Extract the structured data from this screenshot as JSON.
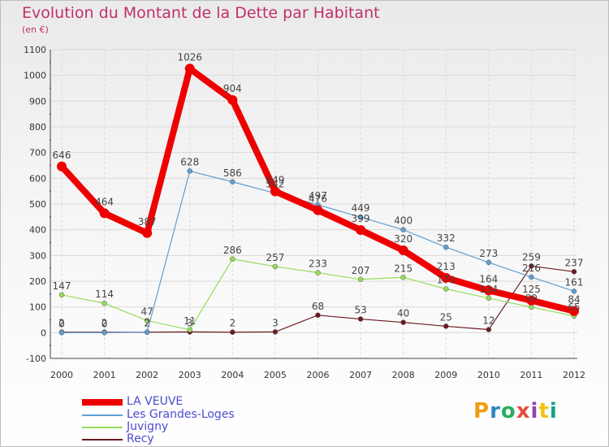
{
  "header": {
    "title": "Evolution du Montant de la Dette par Habitant",
    "subtitle": "(en €)"
  },
  "logo": {
    "text": "Proxiti"
  },
  "colors": {
    "accent": "#c0306a",
    "legend_text": "#4b4bcf",
    "grid": "#d9d9d9"
  },
  "chart_data": {
    "type": "line",
    "title": "Evolution du Montant de la Dette par Habitant",
    "subtitle": "(en €)",
    "xlabel": "",
    "ylabel": "",
    "x": [
      "2000",
      "2001",
      "2002",
      "2003",
      "2004",
      "2005",
      "2006",
      "2007",
      "2008",
      "2009",
      "2010",
      "2011",
      "2012"
    ],
    "ylim": [
      -100,
      1100
    ],
    "yticks": [
      -100,
      0,
      100,
      200,
      300,
      400,
      500,
      600,
      700,
      800,
      900,
      1000,
      1100
    ],
    "grid": true,
    "legend_position": "bottom-left",
    "series": [
      {
        "name": "LA VEUVE",
        "color": "#ee0000",
        "values": [
          646,
          464,
          387,
          1026,
          904,
          549,
          476,
          399,
          320,
          213,
          164,
          125,
          84
        ]
      },
      {
        "name": "Les Grandes-Loges",
        "color": "#5f9fd2",
        "values": [
          0,
          0,
          2,
          628,
          586,
          542,
          497,
          449,
          400,
          332,
          273,
          216,
          161
        ]
      },
      {
        "name": "Juvigny",
        "color": "#96dd5a",
        "values": [
          147,
          114,
          47,
          11,
          286,
          257,
          233,
          207,
          215,
          170,
          134,
          99,
          65
        ]
      },
      {
        "name": "Recy",
        "color": "#6b1a22",
        "values": [
          2,
          2,
          2,
          3,
          2,
          3,
          68,
          53,
          40,
          25,
          12,
          259,
          237
        ]
      }
    ],
    "data_labels": [
      {
        "series": "LA VEUVE",
        "values": [
          "646",
          "464",
          "387",
          "1026",
          "904",
          "549",
          "476",
          "399",
          "320",
          "213",
          "164",
          "125",
          "84"
        ]
      },
      {
        "series": "Les Grandes-Loges",
        "values": [
          "0",
          "0",
          "2",
          "628",
          "586",
          "542",
          "497",
          "449",
          "400",
          "332",
          "273",
          "216",
          "161"
        ]
      },
      {
        "series": "Juvigny",
        "values": [
          "147",
          "114",
          "47",
          "11",
          "286",
          "257",
          "233",
          "207",
          "215",
          "170",
          "134",
          "99",
          "65"
        ]
      },
      {
        "series": "Recy",
        "values": [
          "2",
          "2",
          "2",
          "3",
          "2",
          "3",
          "68",
          "53",
          "40",
          "25",
          "12",
          "259",
          "237"
        ]
      }
    ]
  }
}
